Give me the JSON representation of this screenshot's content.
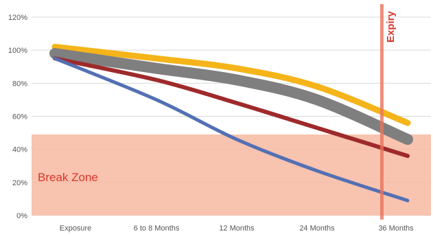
{
  "chart_data": {
    "type": "line",
    "categories": [
      "Exposure",
      "6 to 8 Months",
      "12 Months",
      "24 Months",
      "36 Months"
    ],
    "y_ticks": [
      "0%",
      "20%",
      "40%",
      "60%",
      "80%",
      "100%",
      "120%"
    ],
    "ylim": [
      0,
      120
    ],
    "grid": true,
    "series": [
      {
        "color": "#f4b41a",
        "stroke": 9,
        "values": [
          102,
          95,
          89,
          78,
          56
        ]
      },
      {
        "color": "#7f7f7f",
        "stroke": 16,
        "values": [
          98,
          89,
          82,
          70,
          46
        ]
      },
      {
        "color": "#9e2a2b",
        "stroke": 6,
        "values": [
          95,
          82,
          68,
          53,
          36
        ]
      },
      {
        "color": "#5470b4",
        "stroke": 5,
        "values": [
          95,
          70,
          46,
          27,
          9
        ]
      }
    ],
    "break_zone": {
      "label": "Break Zone",
      "from": 0,
      "to": 49,
      "color": "#f7b9a1"
    },
    "expiry": {
      "label": "Expiry",
      "at_category": 4,
      "color": "#e8735d"
    }
  }
}
